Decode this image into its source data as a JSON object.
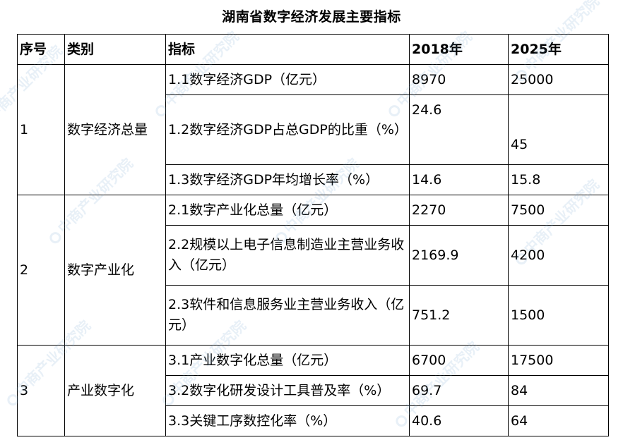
{
  "title": "湖南省数字经济发展主要指标",
  "watermark": {
    "text": "中商产业研究院",
    "icon": "company-logo-icon",
    "color": "#6EA0CD"
  },
  "table": {
    "headers": {
      "seq": "序号",
      "category": "类别",
      "indicator": "指标",
      "y2018": "2018年",
      "y2025": "2025年"
    },
    "groups": [
      {
        "seq": "1",
        "category": "数字经济总量",
        "rows": [
          {
            "indicator": "1.1数字经济GDP（亿元）",
            "v2018": "8970",
            "v2025": "25000"
          },
          {
            "indicator": "1.2数字经济GDP占总GDP的比重（%）",
            "v2018": "24.6",
            "v2025": "45"
          },
          {
            "indicator": "1.3数字经济GDP年均增长率（%）",
            "v2018": "14.6",
            "v2025": "15.8"
          }
        ]
      },
      {
        "seq": "2",
        "category": "数字产业化",
        "rows": [
          {
            "indicator": "2.1数字产业化总量（亿元）",
            "v2018": "2270",
            "v2025": "7500"
          },
          {
            "indicator": "2.2规模以上电子信息制造业主营业务收入（亿元）",
            "v2018": "2169.9",
            "v2025": "4200"
          },
          {
            "indicator": "2.3软件和信息服务业主营业务收入（亿元）",
            "v2018": "751.2",
            "v2025": "1500"
          }
        ]
      },
      {
        "seq": "3",
        "category": "产业数字化",
        "rows": [
          {
            "indicator": "3.1产业数字化总量（亿元）",
            "v2018": "6700",
            "v2025": "17500"
          },
          {
            "indicator": "3.2数字化研发设计工具普及率（%）",
            "v2018": "69.7",
            "v2025": "84"
          },
          {
            "indicator": "3.3关键工序数控化率（%）",
            "v2018": "40.6",
            "v2025": "64"
          }
        ]
      }
    ]
  }
}
